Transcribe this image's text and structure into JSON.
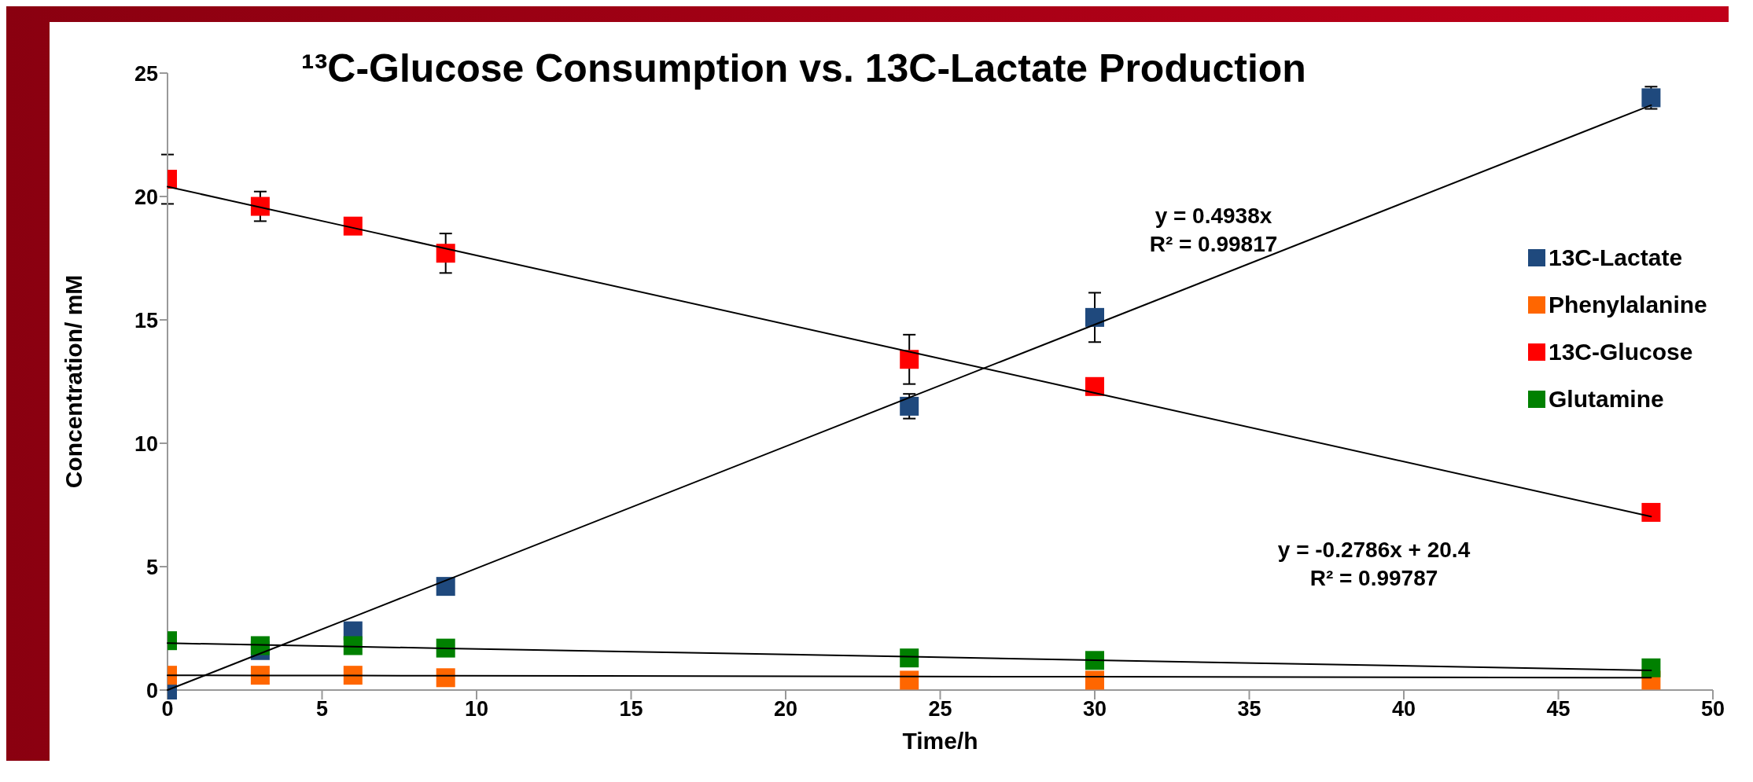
{
  "chart_data": {
    "type": "scatter",
    "title": "¹³C-Glucose Consumption vs. 13C-Lactate Production",
    "xlabel": "Time/h",
    "ylabel": "Concentration/ mM",
    "x": [
      0,
      3,
      6,
      9,
      24,
      30,
      48
    ],
    "series": [
      {
        "name": "13C-Lactate",
        "color": "#1f497d",
        "values": [
          0,
          1.6,
          2.4,
          4.2,
          11.5,
          15.1,
          24.0
        ],
        "errors": [
          null,
          null,
          null,
          null,
          0.5,
          1.0,
          0.45
        ]
      },
      {
        "name": "Phenylalanine",
        "color": "#ff6600",
        "values": [
          0.6,
          0.6,
          0.6,
          0.5,
          0.4,
          0.4,
          0.4
        ]
      },
      {
        "name": "13C-Glucose",
        "color": "#ff0000",
        "values": [
          20.7,
          19.6,
          18.8,
          17.7,
          13.4,
          12.3,
          7.2
        ],
        "errors": [
          1.0,
          0.6,
          null,
          0.8,
          1.0,
          null,
          null
        ]
      },
      {
        "name": "Glutamine",
        "color": "#008000",
        "values": [
          2.0,
          1.8,
          1.8,
          1.7,
          1.3,
          1.2,
          0.9
        ]
      },
      {
        "type": "line",
        "marker": "none",
        "color": "#000000",
        "values": [
          0,
          1.48,
          2.96,
          4.44,
          11.85,
          14.81,
          23.7
        ]
      },
      {
        "type": "line",
        "marker": "none",
        "color": "#000000",
        "values": [
          20.4,
          19.56,
          18.73,
          17.89,
          13.71,
          12.04,
          7.03
        ]
      },
      {
        "type": "line",
        "marker": "none",
        "color": "#000000",
        "values": [
          1.9,
          1.83,
          1.76,
          1.69,
          1.35,
          1.21,
          0.8
        ]
      },
      {
        "type": "line",
        "marker": "none",
        "color": "#000000",
        "values": [
          0.6,
          0.59,
          0.59,
          0.58,
          0.55,
          0.54,
          0.5
        ]
      }
    ],
    "annotations": [
      "y = 0.4938x\nR² = 0.99817",
      "y = -0.2786x + 20.4\nR² = 0.99787"
    ],
    "xlim": [
      0,
      50
    ],
    "xticks": [
      0,
      5,
      10,
      15,
      20,
      25,
      30,
      35,
      40,
      45,
      50
    ],
    "ylim": [
      0,
      25
    ],
    "yticks": [
      0,
      5,
      10,
      15,
      20,
      25
    ],
    "grid": false,
    "legend": "right",
    "marker": "square"
  }
}
